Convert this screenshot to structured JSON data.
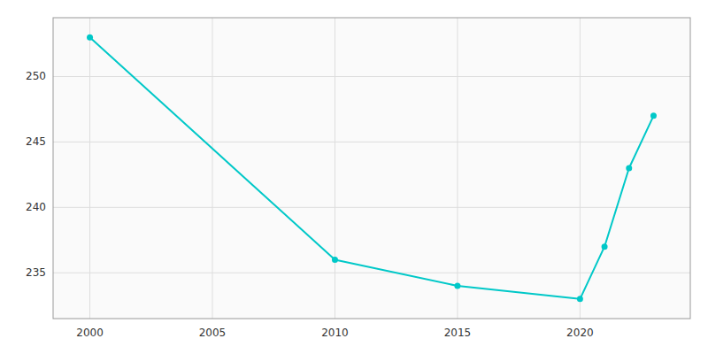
{
  "chart_data": {
    "type": "line",
    "x": [
      2000,
      2010,
      2015,
      2020,
      2021,
      2022,
      2023
    ],
    "values": [
      253,
      236,
      234,
      233,
      237,
      243,
      247
    ],
    "color": "#00C8C8",
    "marker": "circle",
    "xlim": [
      1998.5,
      2024.5
    ],
    "xticks": [
      2000,
      2005,
      2010,
      2015,
      2020
    ],
    "ylim": [
      231.5,
      254.5
    ],
    "yticks": [
      235,
      240,
      245,
      250
    ],
    "grid": true
  }
}
